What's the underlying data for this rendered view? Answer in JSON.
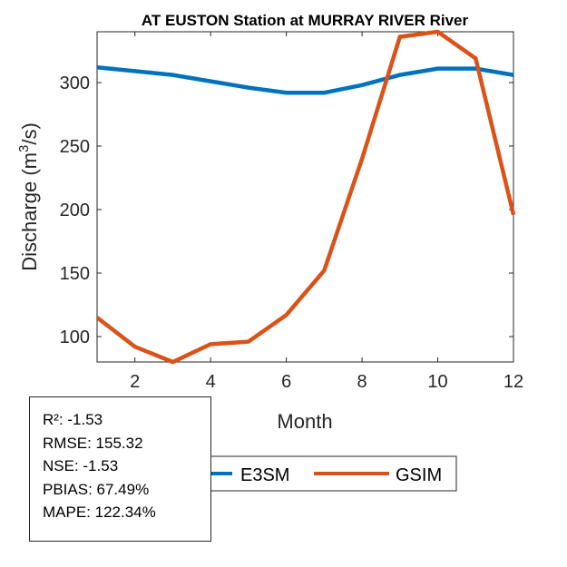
{
  "chart_data": {
    "type": "line",
    "title": "AT EUSTON  Station at  MURRAY RIVER  River",
    "xlabel": "Month",
    "ylabel": "Discharge (m³/s)",
    "ylabel_base": "Discharge (m",
    "ylabel_sup": "3",
    "ylabel_end": "/s)",
    "xlim": [
      1,
      12
    ],
    "ylim": [
      80,
      340
    ],
    "xticks": [
      2,
      4,
      6,
      8,
      10,
      12
    ],
    "yticks": [
      100,
      150,
      200,
      250,
      300
    ],
    "grid": false,
    "legend_placement": "bottom-outside",
    "x": [
      1,
      2,
      3,
      4,
      5,
      6,
      7,
      8,
      9,
      10,
      11,
      12
    ],
    "series": [
      {
        "name": "E3SM",
        "color": "#0072BD",
        "values": [
          312,
          309,
          306,
          301,
          296,
          292,
          292,
          298,
          306,
          311,
          311,
          306
        ]
      },
      {
        "name": "GSIM",
        "color": "#D95319",
        "values": [
          115,
          92,
          80,
          94,
          96,
          117,
          152,
          240,
          336,
          340,
          319,
          196
        ]
      }
    ]
  },
  "stats": [
    "R²: -1.53",
    "RMSE: 155.32",
    "NSE: -1.53",
    "PBIAS: 67.49%",
    "MAPE: 122.34%"
  ]
}
